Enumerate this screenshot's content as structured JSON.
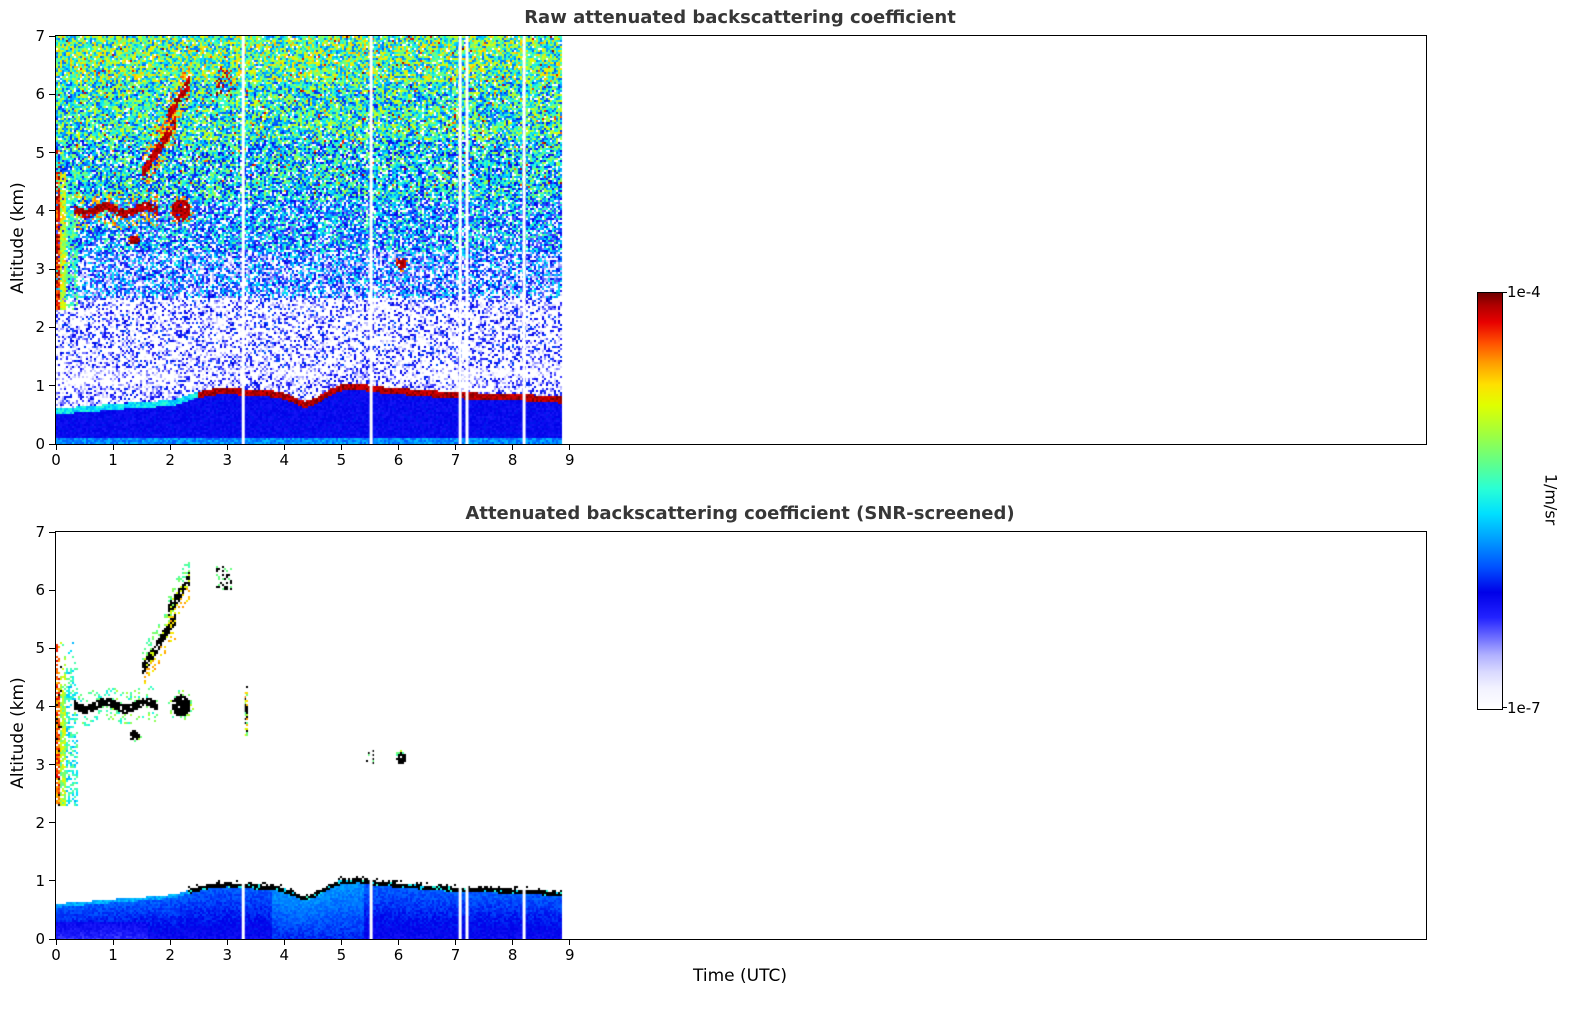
{
  "window": {
    "background": "#ffffff"
  },
  "chart_data": {
    "type": "heatmap",
    "panels": [
      {
        "title": "Raw attenuated backscattering coefficient",
        "style": "raw"
      },
      {
        "title": "Attenuated backscattering coefficient (SNR-screened)",
        "style": "screened"
      }
    ],
    "x": {
      "label": "Time (UTC)",
      "lim": [
        0,
        24
      ],
      "ticks": [
        0,
        1,
        2,
        3,
        4,
        5,
        6,
        7,
        8,
        9
      ],
      "data_extent": [
        0,
        8.83
      ]
    },
    "y": {
      "label": "Altitude (km)",
      "lim": [
        0,
        7
      ],
      "ticks": [
        0,
        1,
        2,
        3,
        4,
        5,
        6,
        7
      ]
    },
    "colorbar": {
      "unit_label": "1/m/sr",
      "max_label": "1e-4",
      "min_label": "1e-7",
      "scale": "log10",
      "vmin": 1e-07,
      "vmax": 0.0001
    },
    "colormap_stops": [
      [
        0.0,
        "#ffffff"
      ],
      [
        0.05,
        "#f2f2ff"
      ],
      [
        0.09,
        "#d8d8ff"
      ],
      [
        0.13,
        "#b0b0ff"
      ],
      [
        0.17,
        "#7070ff"
      ],
      [
        0.22,
        "#2222ff"
      ],
      [
        0.28,
        "#0000e8"
      ],
      [
        0.34,
        "#0050ff"
      ],
      [
        0.41,
        "#00a0ff"
      ],
      [
        0.47,
        "#00e0ff"
      ],
      [
        0.53,
        "#2affd5"
      ],
      [
        0.59,
        "#5fff8c"
      ],
      [
        0.66,
        "#9fff40"
      ],
      [
        0.73,
        "#dfff00"
      ],
      [
        0.78,
        "#ffe000"
      ],
      [
        0.83,
        "#ffa000"
      ],
      [
        0.88,
        "#ff5000"
      ],
      [
        0.93,
        "#e80000"
      ],
      [
        0.97,
        "#b00000"
      ],
      [
        1.0,
        "#700000"
      ]
    ],
    "boundary_layer_top_km": [
      [
        0.0,
        0.6
      ],
      [
        0.3,
        0.63
      ],
      [
        0.7,
        0.66
      ],
      [
        1.2,
        0.7
      ],
      [
        1.7,
        0.73
      ],
      [
        2.1,
        0.77
      ],
      [
        2.4,
        0.87
      ],
      [
        2.7,
        0.94
      ],
      [
        3.0,
        0.97
      ],
      [
        3.3,
        0.94
      ],
      [
        3.6,
        0.93
      ],
      [
        3.9,
        0.9
      ],
      [
        4.15,
        0.82
      ],
      [
        4.35,
        0.73
      ],
      [
        4.55,
        0.79
      ],
      [
        4.8,
        0.94
      ],
      [
        5.0,
        1.02
      ],
      [
        5.3,
        1.04
      ],
      [
        5.6,
        0.99
      ],
      [
        6.0,
        0.96
      ],
      [
        6.4,
        0.93
      ],
      [
        6.8,
        0.9
      ],
      [
        7.2,
        0.88
      ],
      [
        7.6,
        0.87
      ],
      [
        8.0,
        0.86
      ],
      [
        8.4,
        0.84
      ],
      [
        8.83,
        0.81
      ]
    ],
    "cloud_cap_start_time": 2.5,
    "cloud_features": [
      {
        "name": "near-surface-aerosol-plume",
        "kind": "streak",
        "t": [
          0.0,
          0.38
        ],
        "alt": [
          2.35,
          4.65
        ]
      },
      {
        "name": "cloud-layer-4km",
        "kind": "line",
        "t": [
          0.35,
          1.78
        ],
        "alt": [
          3.93,
          4.1
        ],
        "wave": 0.06,
        "thickness": 0.15
      },
      {
        "name": "cloud-fragment-3p5km",
        "kind": "blob",
        "t": [
          1.28,
          1.46
        ],
        "alt": [
          3.42,
          3.58
        ]
      },
      {
        "name": "sloped-cloud-5km",
        "kind": "slant",
        "t": [
          1.52,
          2.08
        ],
        "alt_start": 4.65,
        "alt_end": 5.5,
        "thickness": 0.22
      },
      {
        "name": "sloped-cloud-6km",
        "kind": "slant",
        "t": [
          1.98,
          2.32
        ],
        "alt_start": 5.65,
        "alt_end": 6.18,
        "thickness": 0.22
      },
      {
        "name": "cloud-blob-4km",
        "kind": "blob",
        "t": [
          2.03,
          2.35
        ],
        "alt": [
          3.82,
          4.2
        ]
      },
      {
        "name": "cloud-specks-6km",
        "kind": "specks",
        "t": [
          2.82,
          3.08
        ],
        "alt": [
          6.0,
          6.4
        ]
      },
      {
        "name": "thin-column-3p8km",
        "kind": "vdash",
        "t": [
          3.28,
          3.36
        ],
        "alt": [
          3.5,
          4.35
        ],
        "screened_only": true
      },
      {
        "name": "speck-3km",
        "kind": "specks",
        "t": [
          5.44,
          5.54
        ],
        "alt": [
          3.0,
          3.22
        ],
        "screened_only": true
      },
      {
        "name": "cloud-dot-3km",
        "kind": "blob",
        "t": [
          5.97,
          6.14
        ],
        "alt": [
          3.0,
          3.2
        ]
      }
    ],
    "data_gap_times": [
      3.28,
      5.52,
      7.08,
      7.2,
      8.2
    ],
    "raw_noise_profile": [
      {
        "alt_max": 1.3,
        "m": 0.1,
        "s": 0.08,
        "pw": 0.55
      },
      {
        "alt_max": 2.5,
        "m": 0.16,
        "s": 0.11,
        "pw": 0.5
      },
      {
        "alt_max": 3.3,
        "m": 0.3,
        "s": 0.13,
        "pw": 0.3
      },
      {
        "alt_max": 4.2,
        "m": 0.38,
        "s": 0.13,
        "pw": 0.2
      },
      {
        "alt_max": 5.2,
        "m": 0.46,
        "s": 0.13,
        "pw": 0.12
      },
      {
        "alt_max": 6.2,
        "m": 0.52,
        "s": 0.13,
        "pw": 0.08
      },
      {
        "alt_max": 7.0,
        "m": 0.58,
        "s": 0.14,
        "pw": 0.05
      }
    ]
  }
}
